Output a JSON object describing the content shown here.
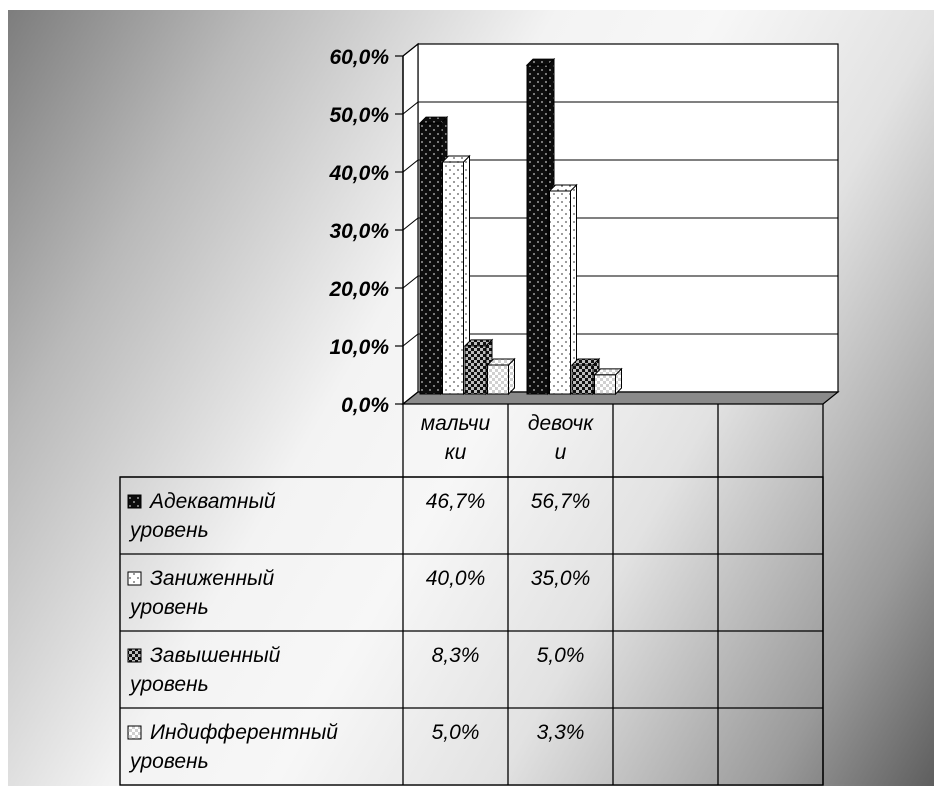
{
  "chart_data": {
    "type": "bar",
    "style": "3d-clustered-column-with-data-table",
    "categories": [
      "мальчи ки",
      "девочк и"
    ],
    "series": [
      {
        "name": "Адекватный уровень",
        "values": [
          46.7,
          56.7
        ],
        "labels": [
          "46,7%",
          "56,7%"
        ],
        "pattern": "dark-dotted"
      },
      {
        "name": "Заниженный уровень",
        "values": [
          40.0,
          35.0
        ],
        "labels": [
          "40,0%",
          "35,0%"
        ],
        "pattern": "white-dotted"
      },
      {
        "name": "Завышенный уровень",
        "values": [
          8.3,
          5.0
        ],
        "labels": [
          "8,3%",
          "5,0%"
        ],
        "pattern": "dark-checker"
      },
      {
        "name": "Индифферентный уровень",
        "values": [
          5.0,
          3.3
        ],
        "labels": [
          "5,0%",
          "3,3%"
        ],
        "pattern": "light-checker"
      }
    ],
    "yticks": [
      "0,0%",
      "10,0%",
      "20,0%",
      "30,0%",
      "40,0%",
      "50,0%",
      "60,0%"
    ],
    "ylim": [
      0,
      60
    ],
    "ytick_step": 10,
    "grid": true,
    "legend": "in data table",
    "title": "",
    "xlabel": "",
    "ylabel": ""
  }
}
